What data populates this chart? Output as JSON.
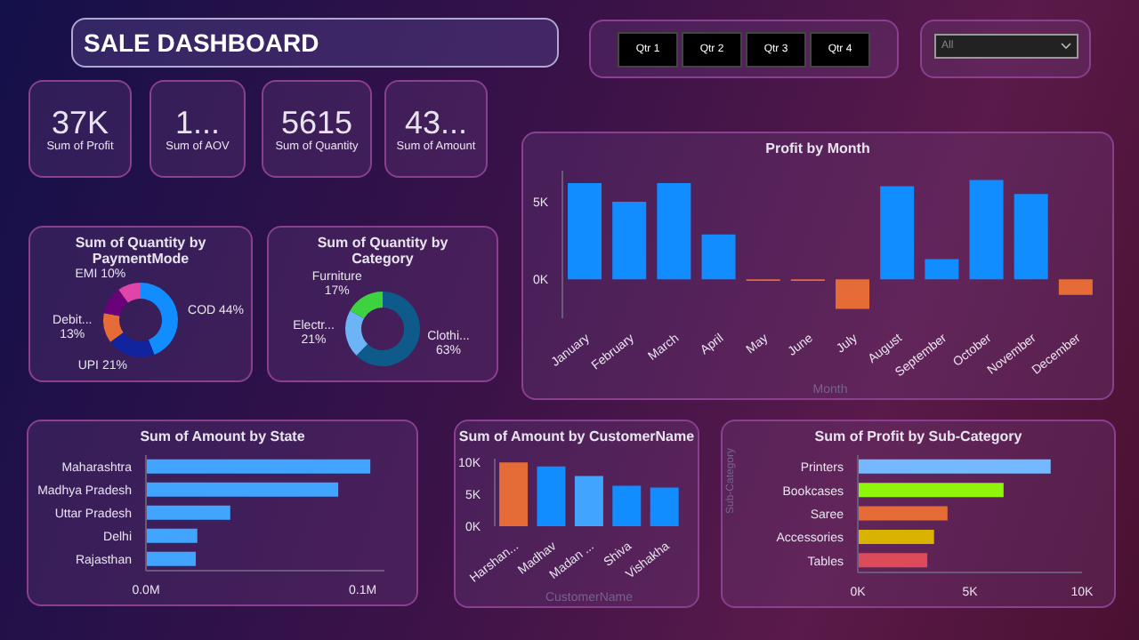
{
  "chart_data": [
    {
      "type": "other",
      "title": "SALE DASHBOARD",
      "annotations": [
        "37K",
        "Sum of Profit",
        "1...",
        "Sum of AOV",
        "5615",
        "Sum of Quantity",
        "43...",
        "Sum of Amount",
        "Qtr 1",
        "Qtr 2",
        "Qtr 3",
        "Qtr 4",
        "All"
      ]
    },
    {
      "type": "donut",
      "title": "Sum of Quantity by PaymentMode",
      "categories": [
        "COD",
        "UPI",
        "Debit...",
        null,
        "EMI"
      ],
      "values": [
        44,
        21,
        13,
        12,
        10
      ],
      "colors": [
        "#118dff",
        "#12239e",
        "#e66c37",
        "#6b007b",
        "#e044a7"
      ],
      "value_labels": [
        "44%",
        "21%",
        "13%",
        null,
        "10%"
      ]
    },
    {
      "type": "donut",
      "title": "Sum of Quantity by Category",
      "categories": [
        "Clothi...",
        "Electr...",
        "Furniture"
      ],
      "values": [
        63,
        21,
        17
      ],
      "colors": [
        "#0e5a8a",
        "#6cb4f5",
        "#3ed140"
      ],
      "value_labels": [
        "63%",
        "21%",
        "17%"
      ]
    },
    {
      "type": "bar",
      "title": "Profit by Month",
      "xlabel": "Month",
      "categories": [
        "January",
        "February",
        "March",
        "April",
        "May",
        "June",
        "July",
        "August",
        "September",
        "October",
        "November",
        "December"
      ],
      "values": [
        6200,
        5000,
        6200,
        2900,
        -100,
        -100,
        -1900,
        6000,
        1300,
        6400,
        5500,
        -1000
      ],
      "colors": [
        "#118dff",
        "#118dff",
        "#118dff",
        "#118dff",
        "#e66c37",
        "#e66c37",
        "#e66c37",
        "#118dff",
        "#118dff",
        "#118dff",
        "#118dff",
        "#e66c37"
      ],
      "ylim": [
        -2500,
        7000
      ],
      "yticks": [
        {
          "value": 0,
          "label": "0K"
        },
        {
          "value": 5000,
          "label": "5K"
        }
      ],
      "grid": false
    },
    {
      "type": "bar",
      "orientation": "horizontal",
      "title": "Sum of Amount by State",
      "categories": [
        "Maharashtra",
        "Madhya Pradesh",
        "Uttar Pradesh",
        "Delhi",
        "Rajasthan"
      ],
      "values": [
        103500,
        88700,
        38900,
        23700,
        23000
      ],
      "colors": [
        "#41a4ff",
        "#41a4ff",
        "#41a4ff",
        "#41a4ff",
        "#41a4ff"
      ],
      "xlim": [
        0,
        110000
      ],
      "xticks": [
        {
          "value": 0,
          "label": "0.0M"
        },
        {
          "value": 100000,
          "label": "0.1M"
        }
      ],
      "grid": false
    },
    {
      "type": "bar",
      "title": "Sum of Amount by CustomerName",
      "xlabel": "CustomerName",
      "categories": [
        "Harshan...",
        "Madhav",
        "Madan ...",
        "Shiva",
        "Vishakha"
      ],
      "values": [
        9900,
        9300,
        7800,
        6300,
        6000
      ],
      "colors": [
        "#e66c37",
        "#118dff",
        "#41a4ff",
        "#118dff",
        "#118dff"
      ],
      "ylim": [
        0,
        10500
      ],
      "yticks": [
        {
          "value": 0,
          "label": "0K"
        },
        {
          "value": 5000,
          "label": "5K"
        },
        {
          "value": 10000,
          "label": "10K"
        }
      ],
      "grid": false
    },
    {
      "type": "bar",
      "orientation": "horizontal",
      "title": "Sum of Profit by Sub-Category",
      "ylabel": "Sub-Category",
      "categories": [
        "Printers",
        "Bookcases",
        "Saree",
        "Accessories",
        "Tables"
      ],
      "values": [
        8600,
        6500,
        4000,
        3400,
        3100
      ],
      "colors": [
        "#74b9ff",
        "#8ff50a",
        "#e66c37",
        "#d9b300",
        "#dd4b5a"
      ],
      "xlim": [
        0,
        10000
      ],
      "xticks": [
        {
          "value": 0,
          "label": "0K"
        },
        {
          "value": 5000,
          "label": "5K"
        },
        {
          "value": 10000,
          "label": "10K"
        }
      ],
      "grid": false
    }
  ]
}
